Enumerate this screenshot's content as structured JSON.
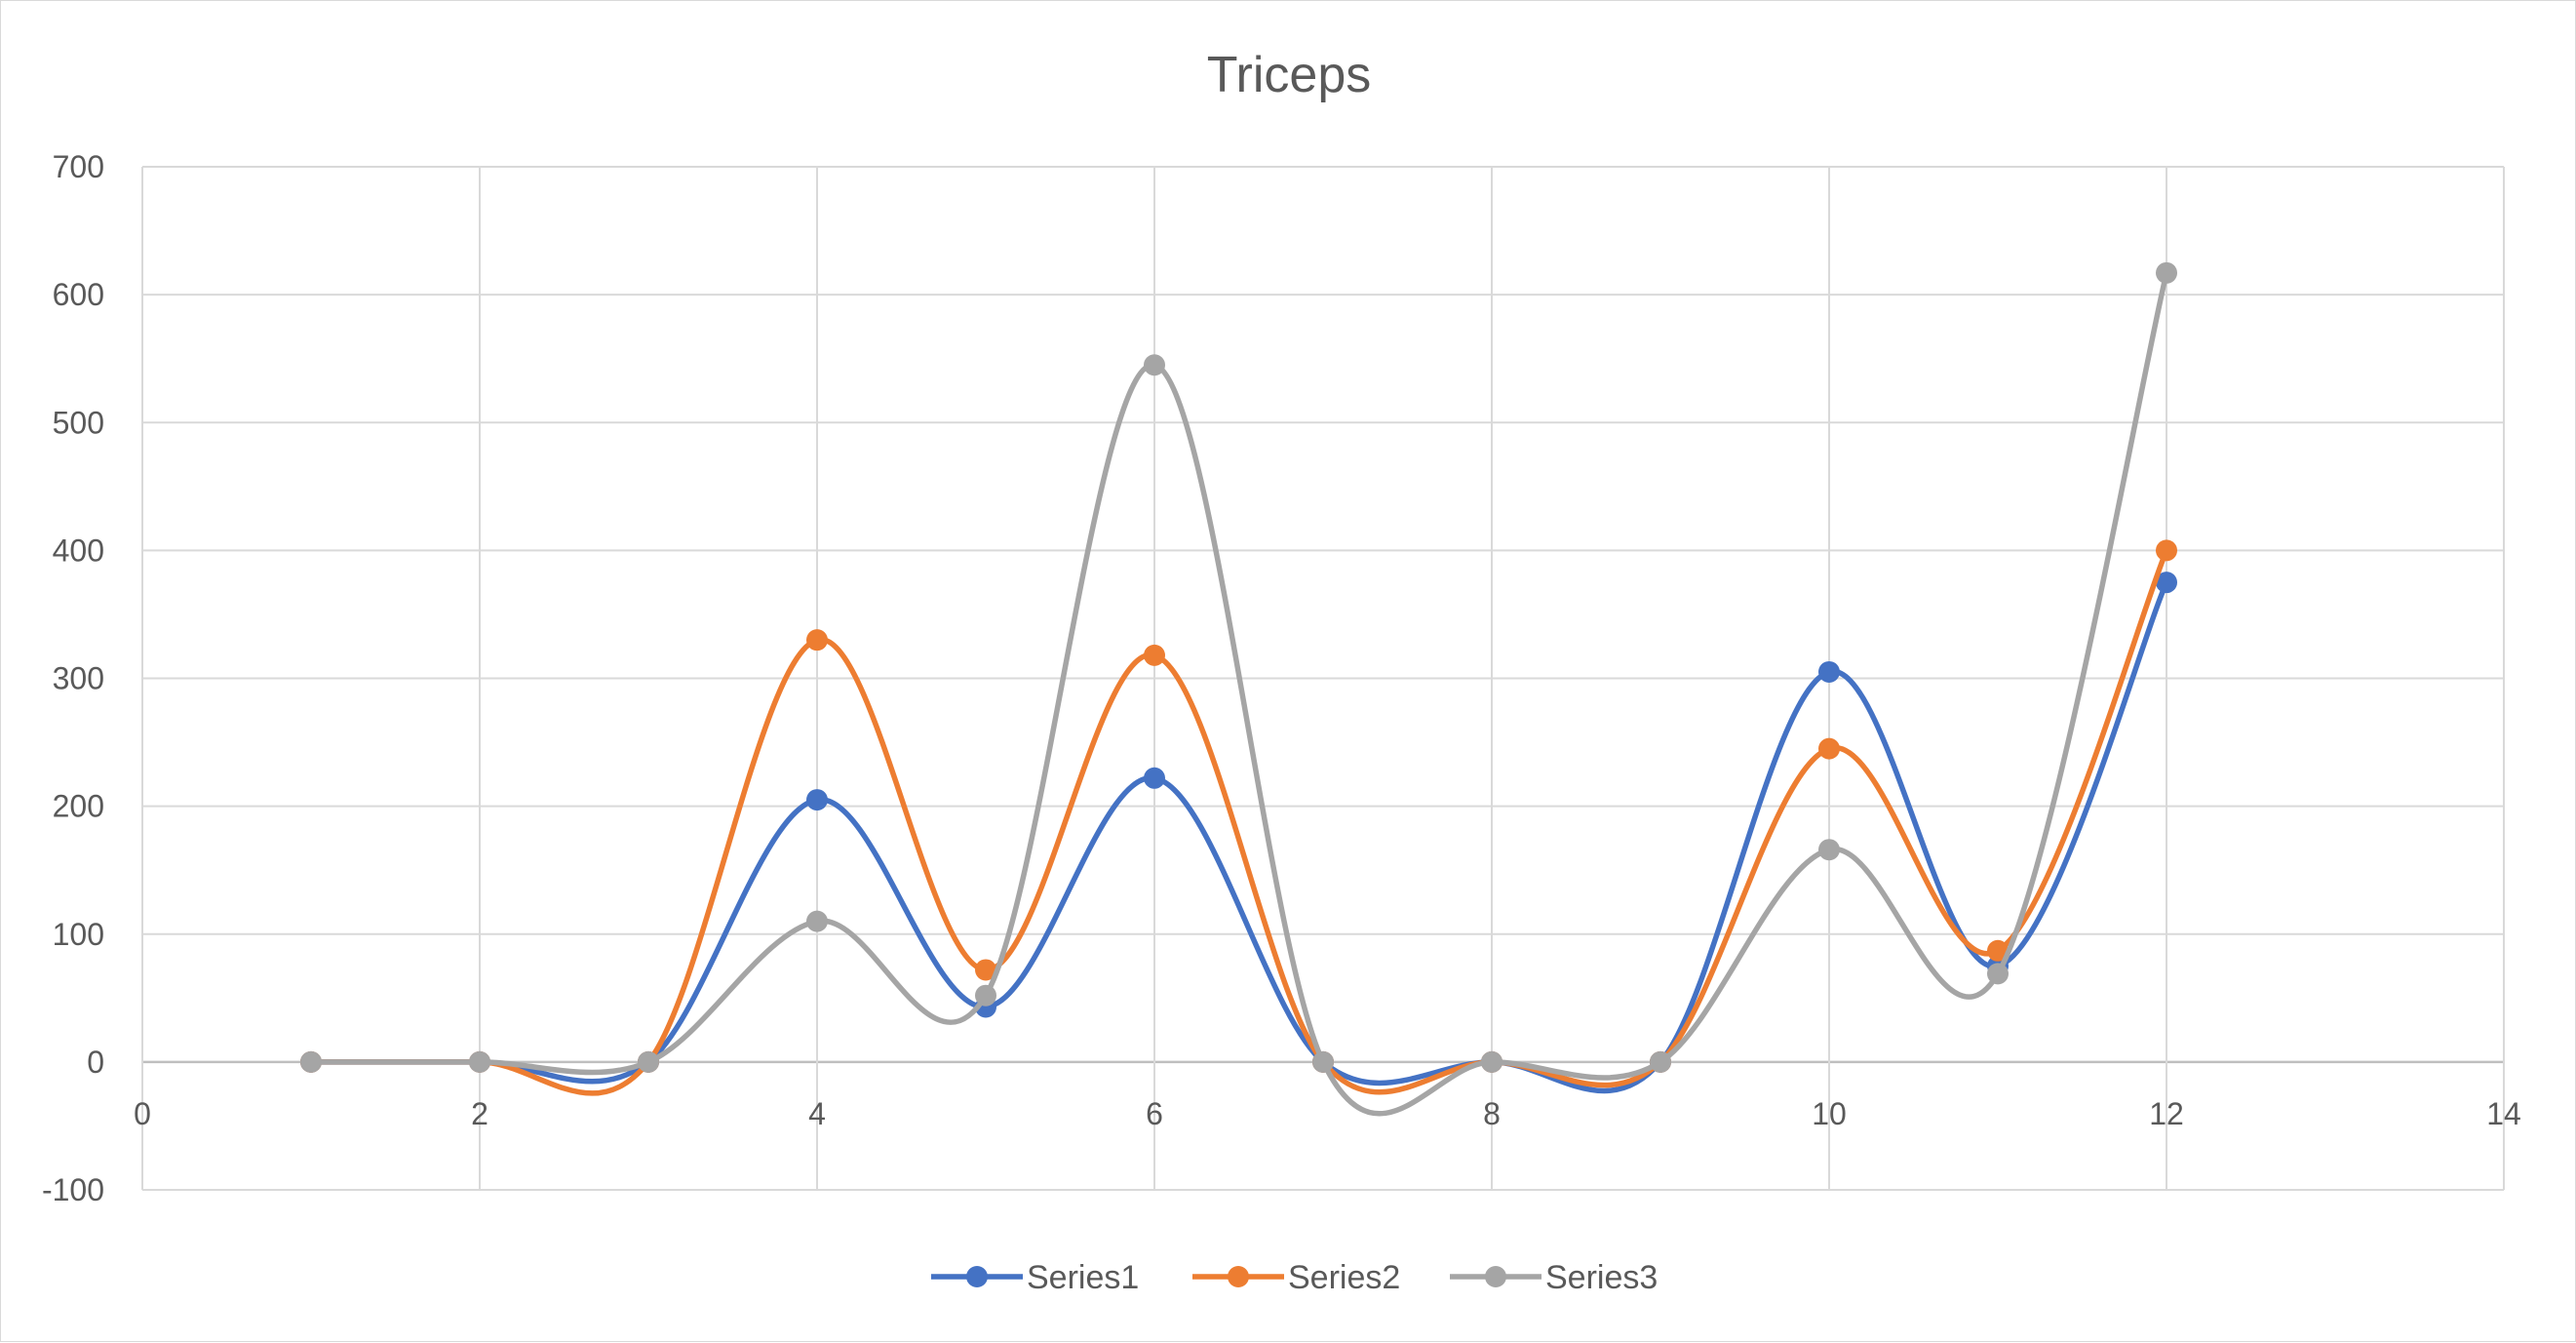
{
  "chart_data": {
    "type": "scatter",
    "title": "Triceps",
    "xlim": [
      0,
      14
    ],
    "ylim": [
      -100,
      700
    ],
    "x_ticks": [
      0,
      2,
      4,
      6,
      8,
      10,
      12,
      14
    ],
    "y_ticks": [
      -100,
      0,
      100,
      200,
      300,
      400,
      500,
      600,
      700
    ],
    "grid": true,
    "smooth_lines": true,
    "legend_position": "bottom",
    "x": [
      1,
      2,
      3,
      4,
      5,
      6,
      7,
      8,
      9,
      10,
      11,
      12
    ],
    "series": [
      {
        "name": "Series1",
        "color": "#4472C4",
        "values": [
          0,
          0,
          0,
          205,
          43,
          222,
          0,
          0,
          0,
          305,
          75,
          375
        ]
      },
      {
        "name": "Series2",
        "color": "#ED7D31",
        "values": [
          0,
          0,
          0,
          330,
          72,
          318,
          0,
          0,
          0,
          245,
          87,
          400
        ]
      },
      {
        "name": "Series3",
        "color": "#A5A5A5",
        "values": [
          0,
          0,
          0,
          110,
          52,
          545,
          0,
          0,
          0,
          166,
          69,
          617
        ]
      }
    ]
  }
}
